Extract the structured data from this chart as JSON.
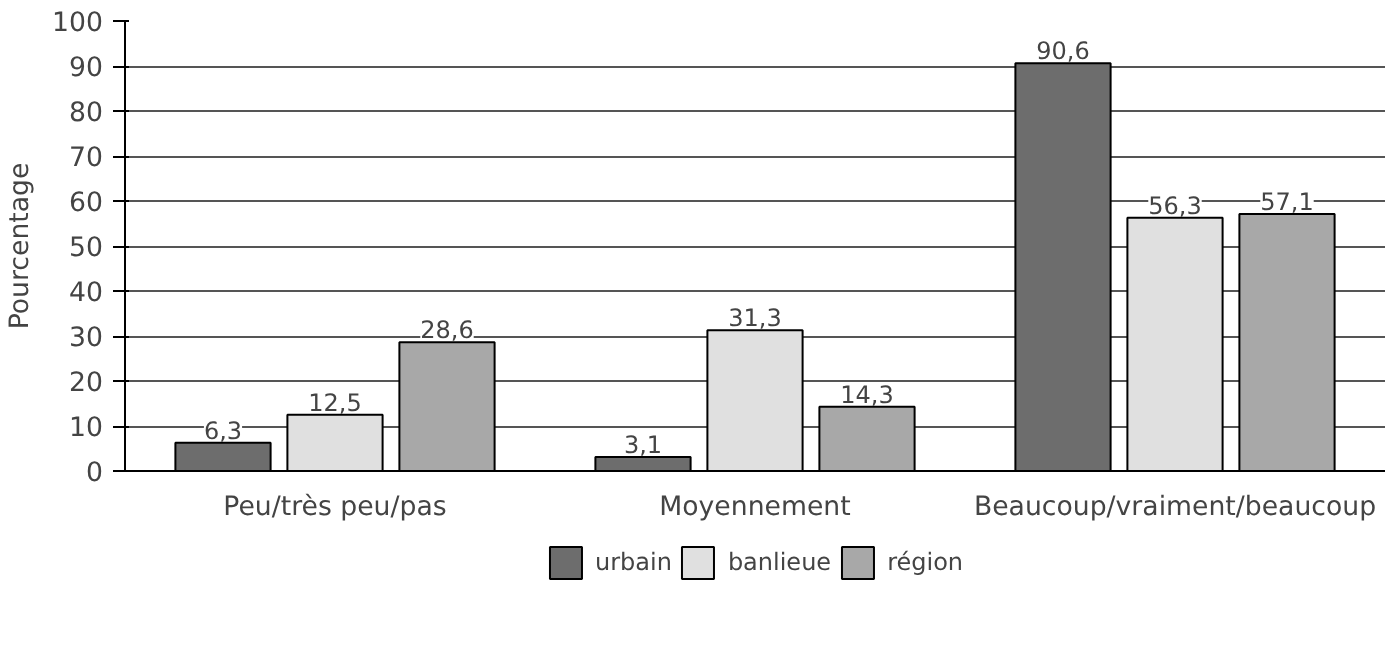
{
  "chart_data": {
    "type": "bar",
    "ylabel": "Pourcentage",
    "categories": [
      "Peu/très peu/pas",
      "Moyennement",
      "Beaucoup/vraiment/beaucoup"
    ],
    "series": [
      {
        "name": "urbain",
        "color": "#6d6d6d",
        "values": [
          6.3,
          3.1,
          90.6
        ],
        "value_labels": [
          "6,3",
          "3,1",
          "90,6"
        ]
      },
      {
        "name": "banlieue",
        "color": "#e0e0e0",
        "values": [
          12.5,
          31.3,
          56.3
        ],
        "value_labels": [
          "12,5",
          "31,3",
          "56,3"
        ]
      },
      {
        "name": "région",
        "color": "#a8a8a8",
        "values": [
          28.6,
          14.3,
          57.1
        ],
        "value_labels": [
          "28,6",
          "14,3",
          "57,1"
        ]
      }
    ],
    "ylim": [
      0,
      100
    ],
    "yticks": [
      0,
      10,
      20,
      30,
      40,
      50,
      60,
      70,
      80,
      90,
      100
    ],
    "grid": "y",
    "legend": "bottom"
  }
}
